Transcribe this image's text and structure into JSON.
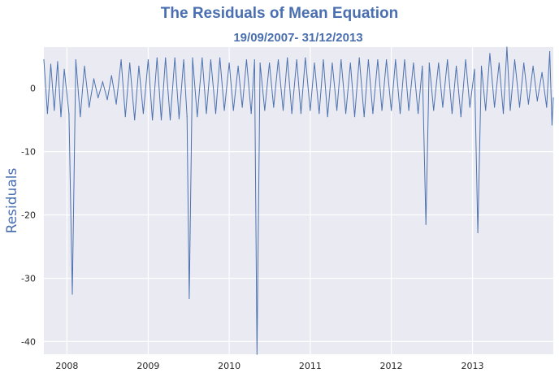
{
  "title": "The Residuals of Mean Equation",
  "subtitle": "19/09/2007- 31/12/2013",
  "chart_data": {
    "type": "line",
    "title": "The Residuals of Mean Equation",
    "subtitle": "19/09/2007- 31/12/2013",
    "xlabel": "",
    "ylabel": "Residuals",
    "x_range": [
      "2007-09-19",
      "2013-12-31"
    ],
    "ylim": [
      -42,
      6.5
    ],
    "x_ticks": [
      "2008",
      "2009",
      "2010",
      "2011",
      "2012",
      "2013"
    ],
    "y_ticks": [
      0,
      -10,
      -20,
      -30,
      -40
    ],
    "grid": true,
    "color": "#4c72b0",
    "series": [
      {
        "points": [
          [
            "2007-09-19",
            4.5
          ],
          [
            "2007-10-05",
            -4.0
          ],
          [
            "2007-10-20",
            3.8
          ],
          [
            "2007-11-05",
            -3.5
          ],
          [
            "2007-11-20",
            4.2
          ],
          [
            "2007-12-05",
            -4.5
          ],
          [
            "2007-12-20",
            3.0
          ],
          [
            "2008-01-10",
            -4.0
          ],
          [
            "2008-01-25",
            -32.5
          ],
          [
            "2008-02-10",
            4.5
          ],
          [
            "2008-03-01",
            -4.5
          ],
          [
            "2008-03-20",
            3.5
          ],
          [
            "2008-04-10",
            -3.0
          ],
          [
            "2008-05-01",
            1.5
          ],
          [
            "2008-05-20",
            -1.5
          ],
          [
            "2008-06-10",
            1.0
          ],
          [
            "2008-07-01",
            -1.8
          ],
          [
            "2008-07-20",
            2.0
          ],
          [
            "2008-08-10",
            -2.5
          ],
          [
            "2008-09-01",
            4.5
          ],
          [
            "2008-09-20",
            -4.5
          ],
          [
            "2008-10-10",
            4.0
          ],
          [
            "2008-11-01",
            -5.0
          ],
          [
            "2008-11-20",
            3.5
          ],
          [
            "2008-12-10",
            -4.0
          ],
          [
            "2009-01-01",
            4.5
          ],
          [
            "2009-01-20",
            -5.0
          ],
          [
            "2009-02-10",
            4.8
          ],
          [
            "2009-03-01",
            -5.0
          ],
          [
            "2009-03-20",
            4.8
          ],
          [
            "2009-04-10",
            -5.0
          ],
          [
            "2009-05-01",
            4.8
          ],
          [
            "2009-05-20",
            -4.8
          ],
          [
            "2009-06-10",
            4.5
          ],
          [
            "2009-06-25",
            -4.5
          ],
          [
            "2009-07-05",
            -33.2
          ],
          [
            "2009-07-20",
            4.8
          ],
          [
            "2009-08-10",
            -4.5
          ],
          [
            "2009-09-01",
            4.8
          ],
          [
            "2009-09-20",
            -4.0
          ],
          [
            "2009-10-10",
            4.5
          ],
          [
            "2009-11-01",
            -4.0
          ],
          [
            "2009-11-20",
            4.8
          ],
          [
            "2009-12-10",
            -3.5
          ],
          [
            "2010-01-01",
            4.0
          ],
          [
            "2010-01-20",
            -3.5
          ],
          [
            "2010-02-10",
            3.5
          ],
          [
            "2010-03-01",
            -3.0
          ],
          [
            "2010-03-20",
            4.5
          ],
          [
            "2010-04-10",
            -4.0
          ],
          [
            "2010-04-25",
            4.5
          ],
          [
            "2010-05-06",
            -42.0
          ],
          [
            "2010-05-20",
            4.0
          ],
          [
            "2010-06-10",
            -3.5
          ],
          [
            "2010-07-01",
            4.0
          ],
          [
            "2010-07-20",
            -3.0
          ],
          [
            "2010-08-10",
            4.5
          ],
          [
            "2010-09-01",
            -3.5
          ],
          [
            "2010-09-20",
            4.8
          ],
          [
            "2010-10-10",
            -4.0
          ],
          [
            "2010-11-01",
            4.5
          ],
          [
            "2010-11-20",
            -4.0
          ],
          [
            "2010-12-10",
            4.8
          ],
          [
            "2011-01-01",
            -3.5
          ],
          [
            "2011-01-20",
            4.0
          ],
          [
            "2011-02-10",
            -4.0
          ],
          [
            "2011-03-01",
            4.5
          ],
          [
            "2011-03-20",
            -4.5
          ],
          [
            "2011-04-10",
            4.0
          ],
          [
            "2011-05-01",
            -3.5
          ],
          [
            "2011-05-20",
            4.5
          ],
          [
            "2011-06-10",
            -4.0
          ],
          [
            "2011-07-01",
            4.0
          ],
          [
            "2011-07-20",
            -4.5
          ],
          [
            "2011-08-10",
            4.8
          ],
          [
            "2011-09-01",
            -4.5
          ],
          [
            "2011-09-20",
            4.5
          ],
          [
            "2011-10-10",
            -4.0
          ],
          [
            "2011-11-01",
            4.5
          ],
          [
            "2011-11-20",
            -3.5
          ],
          [
            "2011-12-10",
            4.5
          ],
          [
            "2012-01-01",
            -3.5
          ],
          [
            "2012-01-20",
            4.5
          ],
          [
            "2012-02-10",
            -4.0
          ],
          [
            "2012-03-01",
            4.5
          ],
          [
            "2012-03-20",
            -3.5
          ],
          [
            "2012-04-10",
            4.0
          ],
          [
            "2012-05-01",
            -4.0
          ],
          [
            "2012-05-20",
            3.5
          ],
          [
            "2012-06-05",
            -21.5
          ],
          [
            "2012-06-20",
            4.0
          ],
          [
            "2012-07-10",
            -3.5
          ],
          [
            "2012-08-01",
            4.0
          ],
          [
            "2012-08-20",
            -3.0
          ],
          [
            "2012-09-10",
            4.5
          ],
          [
            "2012-10-01",
            -4.0
          ],
          [
            "2012-10-20",
            3.5
          ],
          [
            "2012-11-10",
            -4.5
          ],
          [
            "2012-12-01",
            4.5
          ],
          [
            "2012-12-20",
            -3.0
          ],
          [
            "2013-01-10",
            3.0
          ],
          [
            "2013-01-25",
            -22.8
          ],
          [
            "2013-02-10",
            3.5
          ],
          [
            "2013-03-01",
            -3.5
          ],
          [
            "2013-03-20",
            5.5
          ],
          [
            "2013-04-10",
            -3.0
          ],
          [
            "2013-05-01",
            4.0
          ],
          [
            "2013-05-20",
            -4.0
          ],
          [
            "2013-06-05",
            6.5
          ],
          [
            "2013-06-20",
            -3.5
          ],
          [
            "2013-07-10",
            4.5
          ],
          [
            "2013-08-01",
            -3.0
          ],
          [
            "2013-08-20",
            4.0
          ],
          [
            "2013-09-10",
            -2.5
          ],
          [
            "2013-10-01",
            3.5
          ],
          [
            "2013-10-20",
            -2.0
          ],
          [
            "2013-11-10",
            2.5
          ],
          [
            "2013-12-01",
            -3.0
          ],
          [
            "2013-12-15",
            5.8
          ],
          [
            "2013-12-25",
            -5.8
          ],
          [
            "2013-12-31",
            -1.5
          ]
        ]
      }
    ]
  }
}
